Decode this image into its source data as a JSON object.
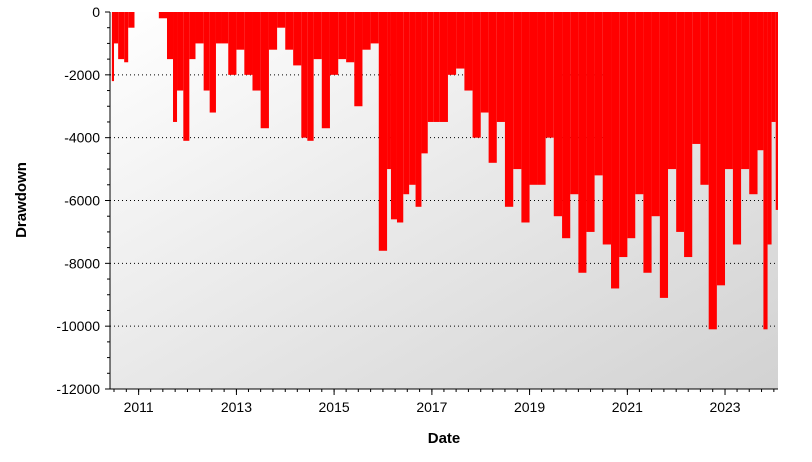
{
  "chart_data": {
    "type": "area",
    "title": "",
    "xlabel": "Date",
    "ylabel": "Drawdown",
    "xlim": [
      "2010-06-01",
      "2024-02-01"
    ],
    "ylim": [
      -12000,
      0
    ],
    "x_ticks": [
      "2011",
      "2013",
      "2015",
      "2017",
      "2019",
      "2021",
      "2023"
    ],
    "y_ticks": [
      "0",
      "-2000",
      "-4000",
      "-6000",
      "-8000",
      "-10000",
      "-12000"
    ],
    "y_tick_values": [
      0,
      -2000,
      -4000,
      -6000,
      -8000,
      -10000,
      -12000
    ],
    "grid": "horizontal dotted",
    "legend": "none",
    "series": [
      {
        "color": "#ff0000",
        "x": [
          "2010-06-15",
          "2010-07-01",
          "2010-08-01",
          "2010-09-15",
          "2010-10-15",
          "2010-12-01",
          "2011-01-01",
          "2011-02-01",
          "2011-04-01",
          "2011-06-01",
          "2011-08-01",
          "2011-09-15",
          "2011-10-15",
          "2011-12-01",
          "2012-01-15",
          "2012-03-01",
          "2012-05-01",
          "2012-06-15",
          "2012-08-01",
          "2012-09-15",
          "2012-11-01",
          "2013-01-01",
          "2013-03-01",
          "2013-05-01",
          "2013-07-01",
          "2013-09-01",
          "2013-11-01",
          "2014-01-01",
          "2014-03-01",
          "2014-05-01",
          "2014-06-15",
          "2014-08-01",
          "2014-10-01",
          "2014-12-01",
          "2015-02-01",
          "2015-04-01",
          "2015-06-01",
          "2015-08-01",
          "2015-10-01",
          "2015-12-01",
          "2016-02-01",
          "2016-03-01",
          "2016-04-15",
          "2016-06-01",
          "2016-07-15",
          "2016-09-01",
          "2016-10-15",
          "2016-12-01",
          "2017-01-15",
          "2017-03-01",
          "2017-05-01",
          "2017-07-01",
          "2017-09-01",
          "2017-11-01",
          "2018-01-01",
          "2018-03-01",
          "2018-05-01",
          "2018-07-01",
          "2018-09-01",
          "2018-11-01",
          "2019-01-01",
          "2019-03-01",
          "2019-05-01",
          "2019-07-01",
          "2019-09-01",
          "2019-11-01",
          "2020-01-01",
          "2020-03-01",
          "2020-05-01",
          "2020-07-01",
          "2020-09-01",
          "2020-11-01",
          "2021-01-01",
          "2021-03-01",
          "2021-05-01",
          "2021-07-01",
          "2021-09-01",
          "2021-11-01",
          "2022-01-01",
          "2022-03-01",
          "2022-05-01",
          "2022-07-01",
          "2022-09-01",
          "2022-11-01",
          "2023-01-01",
          "2023-03-01",
          "2023-05-01",
          "2023-07-01",
          "2023-09-01",
          "2023-10-15",
          "2023-11-15",
          "2023-12-15",
          "2024-01-15"
        ],
        "y": [
          -2200,
          -1000,
          -1500,
          -1600,
          -500,
          0,
          0,
          0,
          0,
          -200,
          -1500,
          -3500,
          -2500,
          -4100,
          -1500,
          -1000,
          -2500,
          -3200,
          -1000,
          -1000,
          -2000,
          -1200,
          -2000,
          -2500,
          -3700,
          -1200,
          -500,
          -1200,
          -1700,
          -4000,
          -4100,
          -1500,
          -3700,
          -2000,
          -1500,
          -1600,
          -3000,
          -1200,
          -1000,
          -7600,
          -5000,
          -6600,
          -6700,
          -5800,
          -5500,
          -6200,
          -4500,
          -3500,
          -3500,
          -3500,
          -2000,
          -1800,
          -2500,
          -4000,
          -3200,
          -4800,
          -3500,
          -6200,
          -5000,
          -6700,
          -5500,
          -5500,
          -4000,
          -6500,
          -7200,
          -5800,
          -8300,
          -7000,
          -5200,
          -7400,
          -8800,
          -7800,
          -7200,
          -5800,
          -8300,
          -6500,
          -9100,
          -5000,
          -7000,
          -7800,
          -4200,
          -5500,
          -10100,
          -8700,
          -5000,
          -7400,
          -5000,
          -5800,
          -4400,
          -10100,
          -7400,
          -3500,
          -6300
        ]
      }
    ]
  }
}
